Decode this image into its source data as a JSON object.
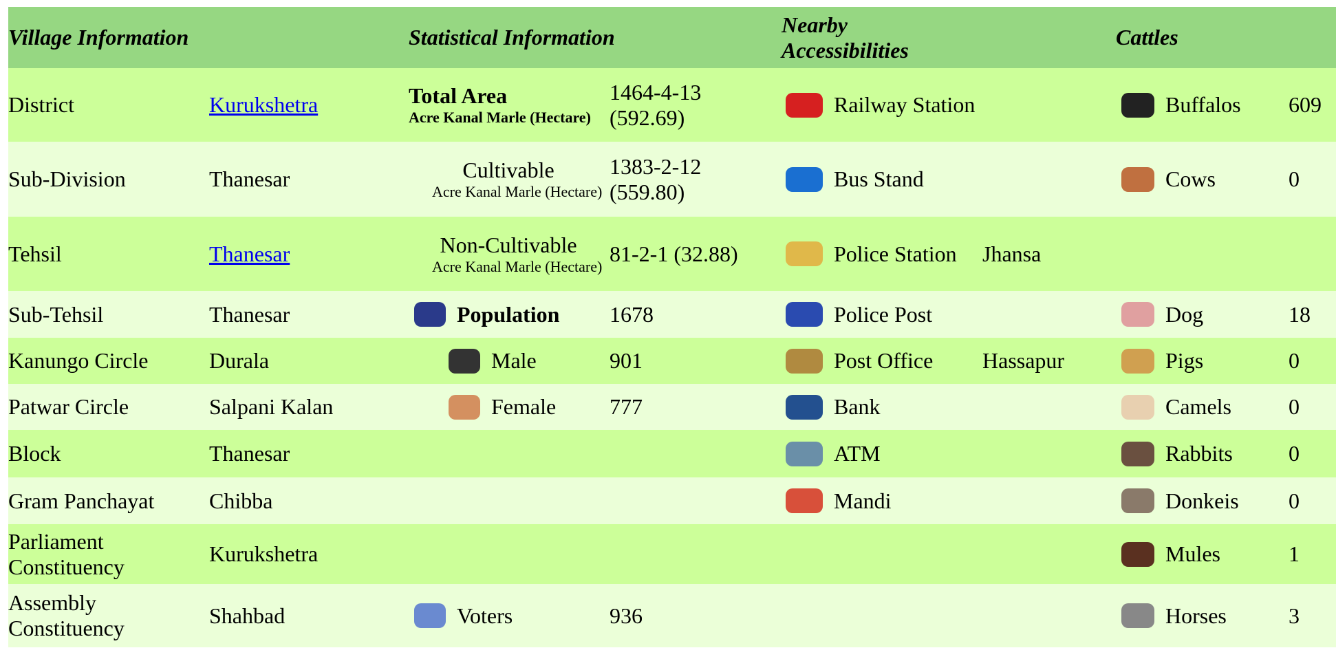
{
  "header": {
    "columns": [
      "Village Information",
      "Statistical Information",
      "Nearby Accessibilities",
      "Cattles"
    ]
  },
  "rows": [
    {
      "village": {
        "label": "District",
        "value": "Kurukshetra"
      },
      "stat": {
        "label": "Total Area",
        "unit": "Acre Kanal Marle (Hectare)",
        "value": "1464-4-13 (592.69)"
      },
      "access": {
        "label": "Railway Station"
      },
      "cattle": {
        "label": "Buffalos",
        "value": 609
      }
    },
    {
      "village": {
        "label": "Sub-Division",
        "value": "Thanesar"
      },
      "stat": {
        "label": "Cultivable",
        "unit": "Acre Kanal Marle (Hectare)",
        "value": "1383-2-12 (559.80)"
      },
      "access": {
        "label": "Bus Stand"
      },
      "cattle": {
        "label": "Cows",
        "value": 0
      }
    },
    {
      "village": {
        "label": "Tehsil",
        "value": "Thanesar"
      },
      "stat": {
        "label": "Non-Cultivable",
        "unit": "Acre Kanal Marle (Hectare)",
        "value": "81-2-1 (32.88)"
      },
      "access": {
        "label": "Police Station",
        "value": "Jhansa"
      }
    },
    {
      "village": {
        "label": "Sub-Tehsil",
        "value": "Thanesar"
      },
      "stat": {
        "label": "Population",
        "value": 1678
      },
      "access": {
        "label": "Police Post"
      },
      "cattle": {
        "label": "Dog",
        "value": 18
      }
    },
    {
      "village": {
        "label": "Kanungo Circle",
        "value": "Durala"
      },
      "stat": {
        "label": "Male",
        "value": 901
      },
      "access": {
        "label": "Post Office",
        "value": "Hassapur"
      },
      "cattle": {
        "label": "Pigs",
        "value": 0
      }
    },
    {
      "village": {
        "label": "Patwar Circle",
        "value": "Salpani Kalan"
      },
      "stat": {
        "label": "Female",
        "value": 777
      },
      "access": {
        "label": "Bank"
      },
      "cattle": {
        "label": "Camels",
        "value": 0
      }
    },
    {
      "village": {
        "label": "Block",
        "value": "Thanesar"
      },
      "access": {
        "label": "ATM"
      },
      "cattle": {
        "label": "Rabbits",
        "value": 0
      }
    },
    {
      "village": {
        "label": "Gram Panchayat",
        "value": "Chibba"
      },
      "access": {
        "label": "Mandi"
      },
      "cattle": {
        "label": "Donkeis",
        "value": 0
      }
    },
    {
      "village": {
        "label": "Parliament Constituency",
        "value": "Kurukshetra"
      },
      "cattle": {
        "label": "Mules",
        "value": 1
      }
    },
    {
      "village": {
        "label": "Assembly Constituency",
        "value": "Shahbad"
      },
      "stat": {
        "label": "Voters",
        "value": 936
      },
      "cattle": {
        "label": "Horses",
        "value": 3
      }
    }
  ]
}
